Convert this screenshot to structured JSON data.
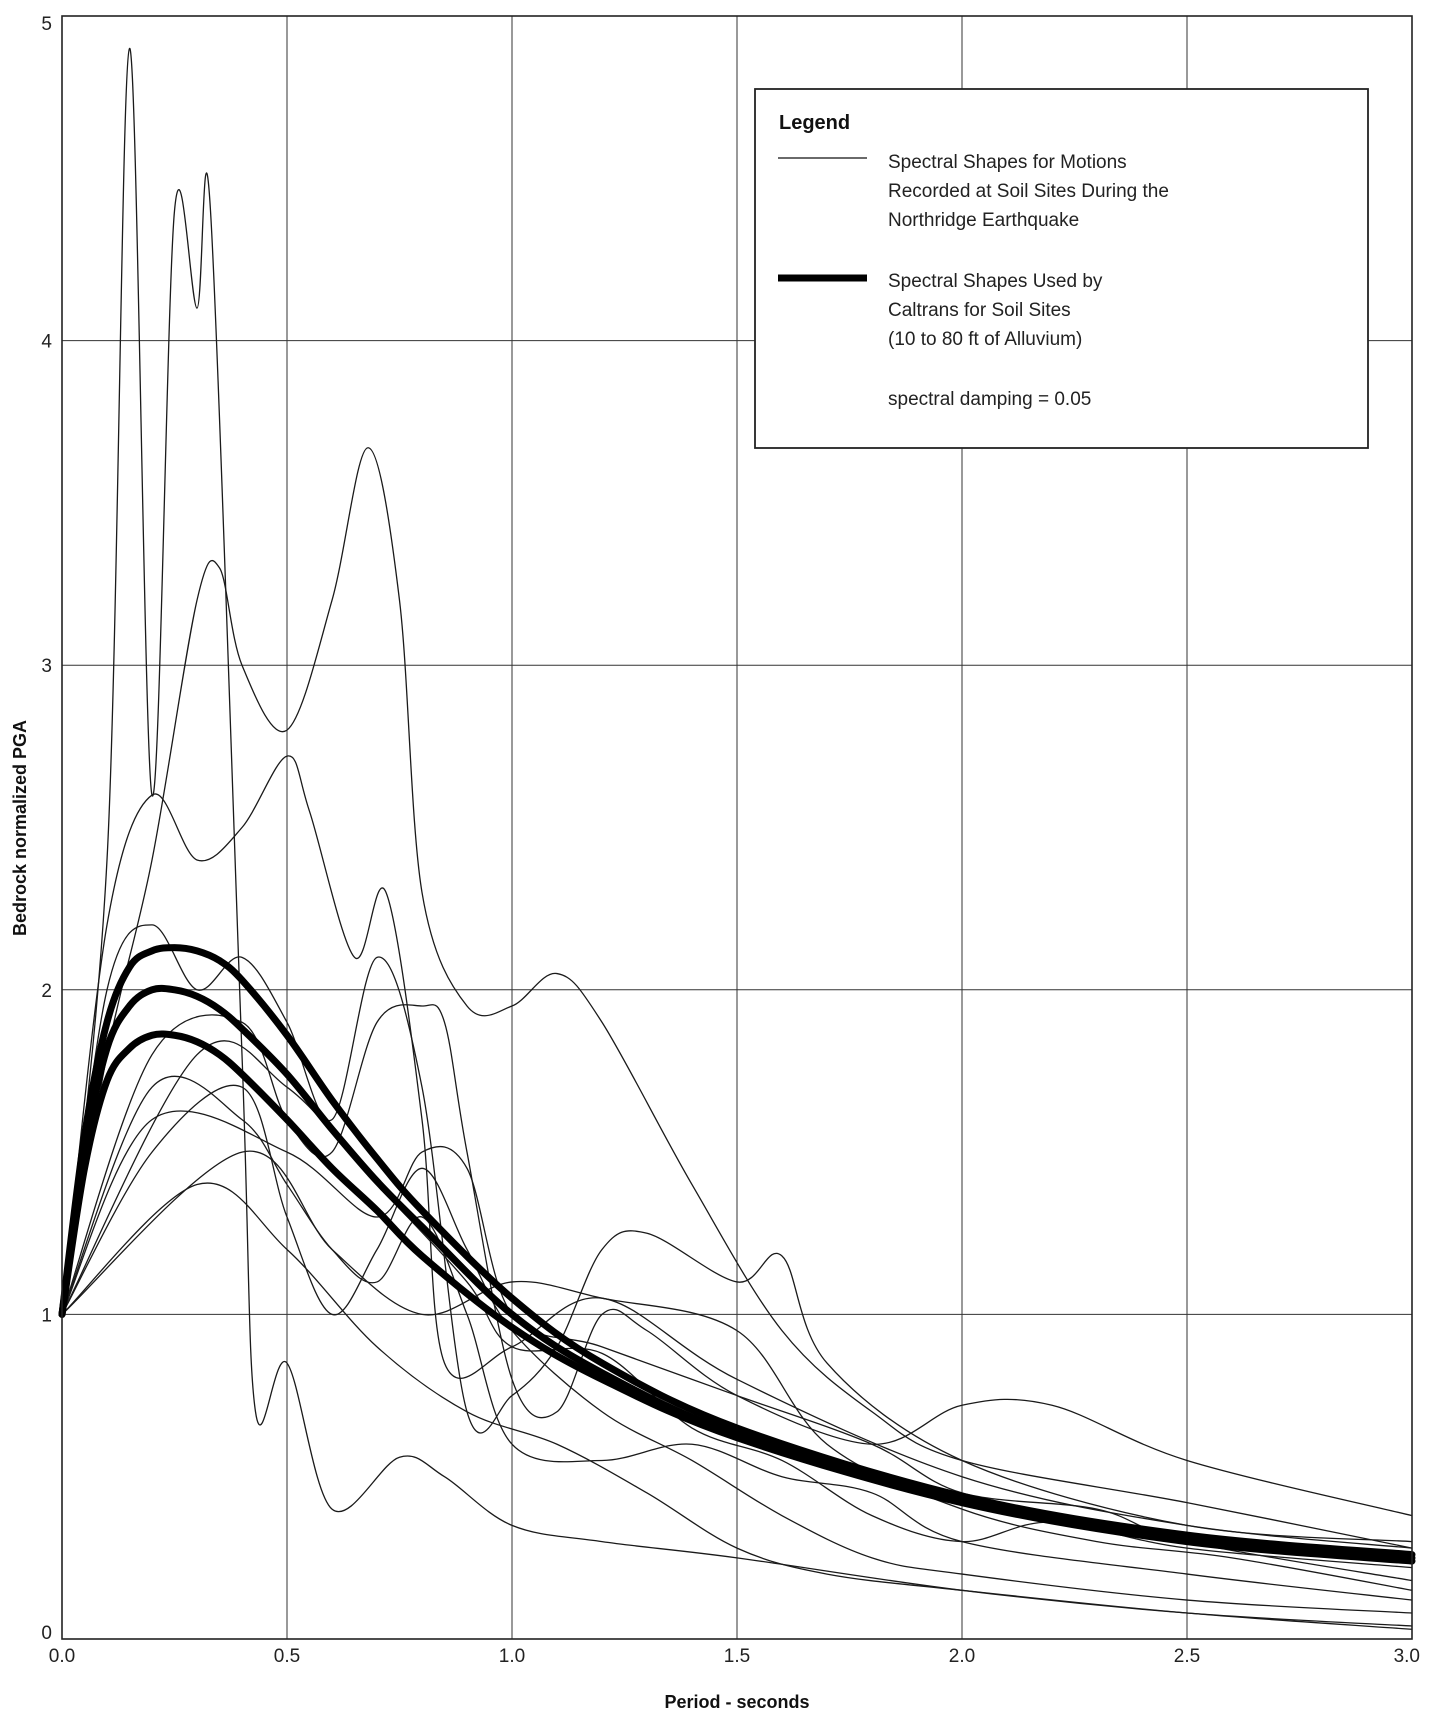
{
  "chart_data": {
    "type": "line",
    "xlabel": "Period - seconds",
    "ylabel": "Bedrock normalized PGA",
    "xlim": [
      0,
      3
    ],
    "ylim": [
      0,
      5
    ],
    "x_ticks": [
      "0.0",
      "0.5",
      "1.0",
      "1.5",
      "2.0",
      "2.5",
      "3.0"
    ],
    "y_ticks": [
      "0",
      "1",
      "2",
      "3",
      "4",
      "5"
    ],
    "grid": true,
    "legend": {
      "placement": "top-right",
      "title": "Legend",
      "entries": [
        {
          "lines": [
            "Spectral Shapes for Motions",
            "Recorded at Soil Sites During the",
            "Northridge Earthquake"
          ],
          "style": "thin"
        },
        {
          "lines": [
            "Spectral Shapes Used by",
            "Caltrans for Soil Sites",
            "(10 to 80 ft of Alluvium)"
          ],
          "style": "thick"
        }
      ],
      "note": "spectral damping = 0.05"
    },
    "series": [
      {
        "style": "thick",
        "x": [
          0,
          0.05,
          0.1,
          0.15,
          0.2,
          0.25,
          0.3,
          0.35,
          0.4,
          0.5,
          0.6,
          0.7,
          0.8,
          1.0,
          1.2,
          1.5,
          2.0,
          2.5,
          3.0
        ],
        "y": [
          1.0,
          1.55,
          1.9,
          2.07,
          2.12,
          2.13,
          2.12,
          2.09,
          2.03,
          1.86,
          1.66,
          1.48,
          1.32,
          1.05,
          0.85,
          0.65,
          0.44,
          0.32,
          0.26
        ]
      },
      {
        "style": "thick",
        "x": [
          0,
          0.05,
          0.1,
          0.15,
          0.2,
          0.25,
          0.3,
          0.35,
          0.4,
          0.5,
          0.6,
          0.7,
          0.8,
          1.0,
          1.2,
          1.5,
          2.0,
          2.5,
          3.0
        ],
        "y": [
          1.0,
          1.5,
          1.82,
          1.95,
          2.0,
          2.0,
          1.98,
          1.94,
          1.88,
          1.74,
          1.57,
          1.41,
          1.27,
          1.0,
          0.82,
          0.63,
          0.43,
          0.31,
          0.25
        ]
      },
      {
        "style": "thick",
        "x": [
          0,
          0.05,
          0.1,
          0.15,
          0.2,
          0.25,
          0.3,
          0.35,
          0.4,
          0.5,
          0.6,
          0.7,
          0.8,
          1.0,
          1.2,
          1.5,
          2.0,
          2.5,
          3.0
        ],
        "y": [
          1.0,
          1.45,
          1.72,
          1.82,
          1.86,
          1.86,
          1.84,
          1.8,
          1.74,
          1.6,
          1.45,
          1.32,
          1.18,
          0.96,
          0.8,
          0.62,
          0.42,
          0.3,
          0.24
        ]
      },
      {
        "style": "thin",
        "x": [
          0,
          0.1,
          0.2,
          0.3,
          0.35,
          0.4,
          0.5,
          0.6,
          0.68,
          0.75,
          0.8,
          0.9,
          1.0,
          1.1,
          1.2,
          1.4,
          1.6,
          1.8,
          2.0,
          2.5,
          3.0
        ],
        "y": [
          1.0,
          1.8,
          2.4,
          3.2,
          3.3,
          3.0,
          2.8,
          3.2,
          3.67,
          3.2,
          2.3,
          1.95,
          1.95,
          2.05,
          1.9,
          1.4,
          0.95,
          0.7,
          0.55,
          0.42,
          0.28
        ]
      },
      {
        "style": "thin",
        "x": [
          0,
          0.1,
          0.15,
          0.2,
          0.25,
          0.3,
          0.33,
          0.4,
          0.43,
          0.5,
          0.6,
          0.75,
          0.85,
          1.0,
          1.2,
          1.5,
          2.0,
          2.5,
          3.0
        ],
        "y": [
          1.0,
          2.4,
          4.9,
          2.6,
          4.4,
          4.1,
          4.4,
          1.8,
          0.7,
          0.85,
          0.4,
          0.56,
          0.5,
          0.35,
          0.3,
          0.25,
          0.15,
          0.08,
          0.04
        ]
      },
      {
        "style": "thin",
        "x": [
          0,
          0.1,
          0.2,
          0.3,
          0.4,
          0.5,
          0.55,
          0.65,
          0.72,
          0.8,
          0.85,
          1.0,
          1.2,
          1.5,
          2.0,
          2.5,
          3.0
        ],
        "y": [
          1.0,
          2.2,
          2.6,
          2.4,
          2.5,
          2.72,
          2.55,
          2.1,
          2.3,
          1.6,
          0.85,
          0.9,
          1.05,
          0.8,
          0.5,
          0.35,
          0.28
        ]
      },
      {
        "style": "thin",
        "x": [
          0,
          0.1,
          0.2,
          0.3,
          0.4,
          0.5,
          0.6,
          0.7,
          0.8,
          0.9,
          1.0,
          1.1,
          1.2,
          1.3,
          1.5,
          1.6,
          1.7,
          2.0,
          2.5,
          3.0
        ],
        "y": [
          1.0,
          2.0,
          2.2,
          2.0,
          2.1,
          1.9,
          1.6,
          2.1,
          1.7,
          0.7,
          0.75,
          0.9,
          1.2,
          1.25,
          1.1,
          1.18,
          0.85,
          0.55,
          0.35,
          0.3
        ]
      },
      {
        "style": "thin",
        "x": [
          0,
          0.2,
          0.4,
          0.5,
          0.6,
          0.7,
          0.8,
          0.85,
          0.9,
          1.0,
          1.1,
          1.2,
          1.3,
          1.5,
          1.8,
          2.0,
          2.2,
          2.5,
          3.0
        ],
        "y": [
          1.0,
          1.8,
          1.9,
          1.6,
          1.5,
          1.9,
          1.95,
          1.9,
          1.5,
          0.8,
          0.7,
          1.0,
          0.95,
          0.75,
          0.6,
          0.72,
          0.72,
          0.55,
          0.38
        ]
      },
      {
        "style": "thin",
        "x": [
          0,
          0.2,
          0.4,
          0.5,
          0.6,
          0.7,
          0.8,
          0.9,
          1.0,
          1.2,
          1.4,
          1.6,
          1.8,
          2.0,
          2.5,
          3.0
        ],
        "y": [
          1.0,
          1.7,
          1.6,
          1.4,
          1.2,
          1.1,
          1.3,
          1.0,
          0.6,
          0.55,
          0.6,
          0.5,
          0.45,
          0.3,
          0.2,
          0.12
        ]
      },
      {
        "style": "thin",
        "x": [
          0,
          0.2,
          0.4,
          0.5,
          0.6,
          0.7,
          0.8,
          0.9,
          1.0,
          1.2,
          1.4,
          1.6,
          1.8,
          2.0,
          2.5,
          3.0
        ],
        "y": [
          1.0,
          1.5,
          1.7,
          1.3,
          1.0,
          1.2,
          1.45,
          1.2,
          0.95,
          0.7,
          0.55,
          0.38,
          0.25,
          0.2,
          0.12,
          0.08
        ]
      },
      {
        "style": "thin",
        "x": [
          0,
          0.2,
          0.5,
          0.7,
          0.8,
          0.9,
          1.0,
          1.2,
          1.5,
          1.8,
          2.0,
          2.3,
          2.5,
          3.0
        ],
        "y": [
          1.0,
          1.6,
          1.5,
          1.3,
          1.5,
          1.45,
          1.0,
          0.9,
          0.75,
          0.6,
          0.45,
          0.4,
          0.3,
          0.18
        ]
      },
      {
        "style": "thin",
        "x": [
          0,
          0.3,
          0.5,
          0.7,
          0.9,
          1.0,
          1.2,
          1.4,
          1.6,
          1.8,
          2.0,
          2.2,
          2.5,
          3.0
        ],
        "y": [
          1.0,
          1.8,
          1.7,
          1.4,
          1.1,
          0.9,
          0.88,
          0.65,
          0.55,
          0.38,
          0.3,
          0.36,
          0.28,
          0.22
        ]
      },
      {
        "style": "thin",
        "x": [
          0,
          0.4,
          0.6,
          0.8,
          1.0,
          1.2,
          1.5,
          1.7,
          2.0,
          2.3,
          2.6,
          3.0
        ],
        "y": [
          1.0,
          1.5,
          1.2,
          1.0,
          1.1,
          1.05,
          0.95,
          0.6,
          0.4,
          0.3,
          0.25,
          0.15
        ]
      },
      {
        "style": "thin",
        "x": [
          0,
          0.3,
          0.5,
          0.7,
          0.9,
          1.1,
          1.3,
          1.5,
          1.7,
          2.0,
          2.5,
          3.0
        ],
        "y": [
          1.0,
          1.4,
          1.2,
          0.9,
          0.7,
          0.6,
          0.45,
          0.28,
          0.2,
          0.15,
          0.08,
          0.03
        ]
      }
    ]
  }
}
